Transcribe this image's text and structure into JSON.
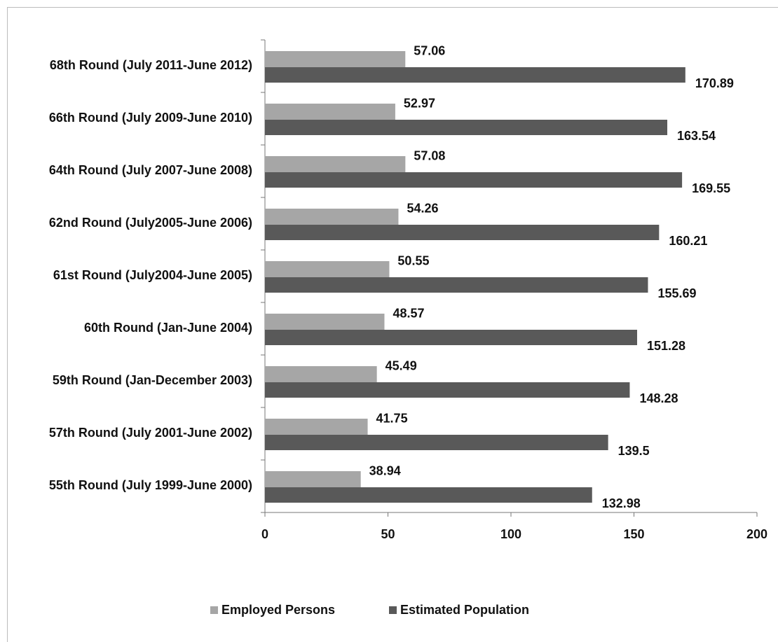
{
  "chart_data": {
    "type": "bar",
    "orientation": "horizontal",
    "categories": [
      "68th Round (July 2011-June 2012)",
      "66th Round (July 2009-June 2010)",
      "64th Round (July 2007-June 2008)",
      "62nd Round (July2005-June 2006)",
      "61st Round (July2004-June 2005)",
      "60th Round (Jan-June 2004)",
      "59th Round (Jan-December 2003)",
      "57th Round (July 2001-June 2002)",
      "55th Round (July 1999-June 2000)"
    ],
    "series": [
      {
        "name": "Employed Persons",
        "color": "#a6a6a6",
        "values": [
          57.06,
          52.97,
          57.08,
          54.26,
          50.55,
          48.57,
          45.49,
          41.75,
          38.94
        ]
      },
      {
        "name": "Estimated Population",
        "color": "#595959",
        "values": [
          170.89,
          163.54,
          169.55,
          160.21,
          155.69,
          151.28,
          148.28,
          139.5,
          132.98
        ]
      }
    ],
    "xlim": [
      0,
      200
    ],
    "xticks": [
      0,
      50,
      100,
      150,
      200
    ],
    "grid": false,
    "legend": "bottom"
  }
}
